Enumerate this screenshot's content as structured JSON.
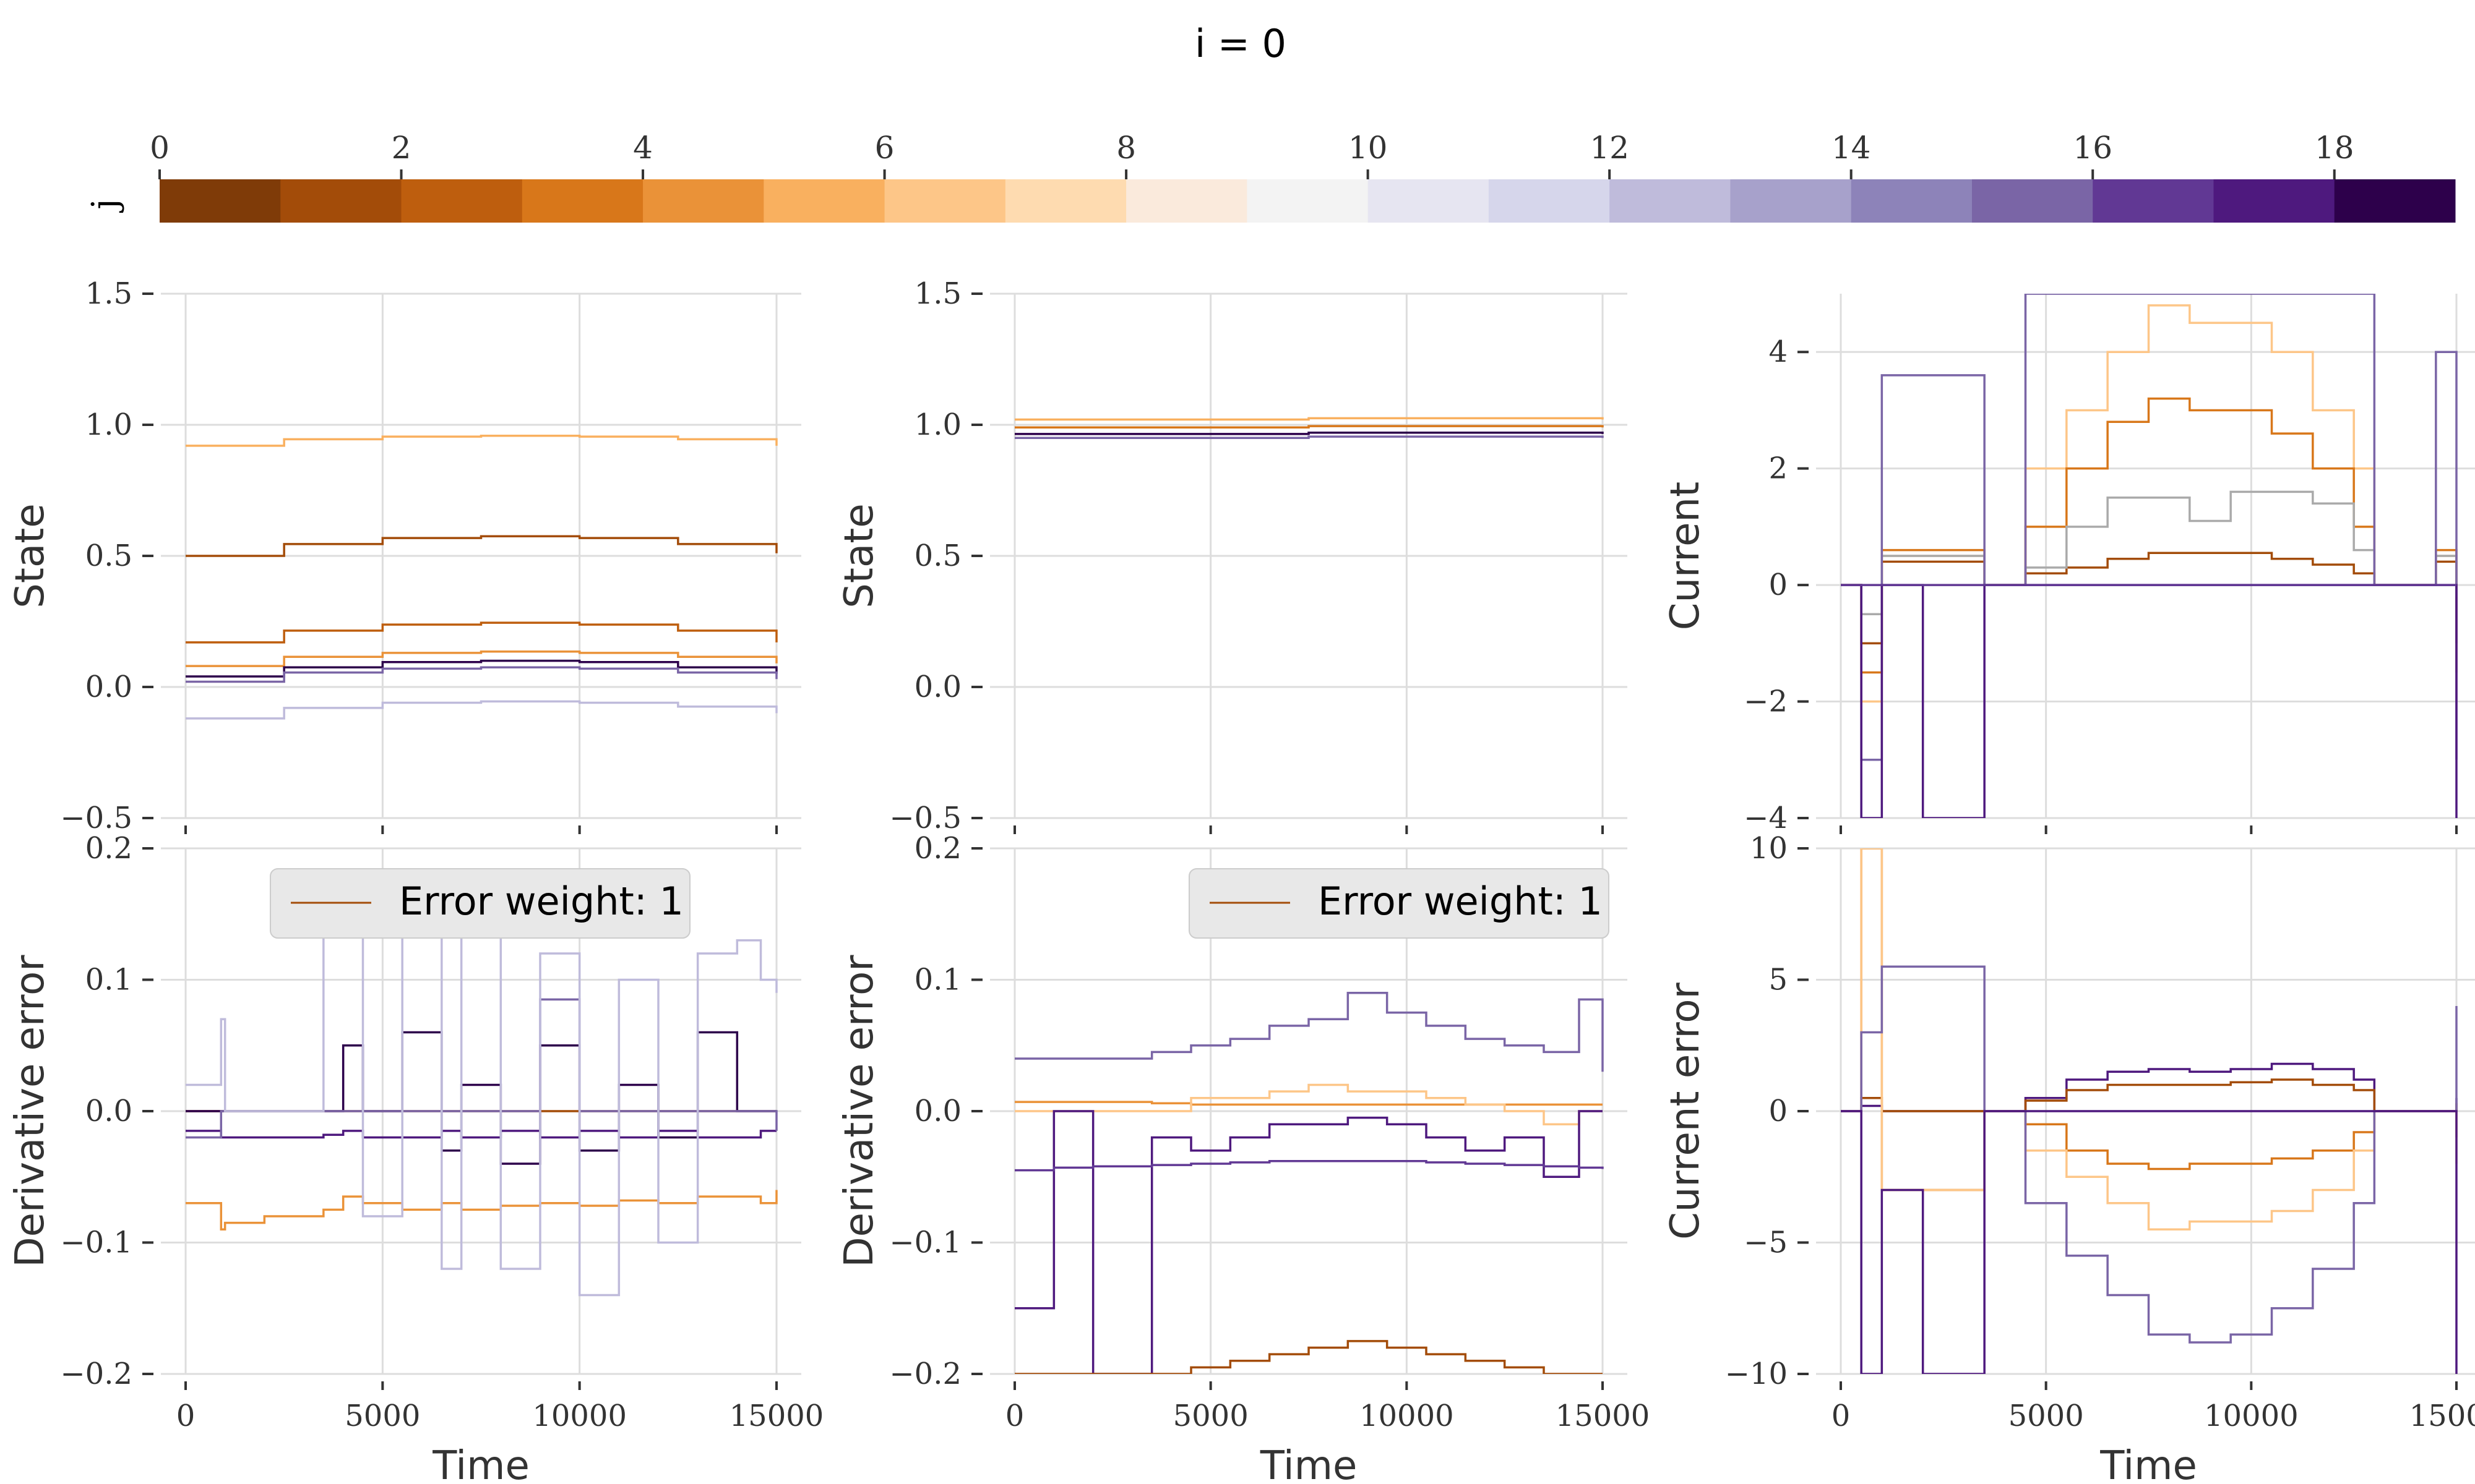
{
  "figure": {
    "title": "i = 0",
    "colorbar": {
      "label": "j",
      "ticks": [
        "0",
        "2",
        "4",
        "6",
        "8",
        "10",
        "12",
        "14",
        "16",
        "18"
      ],
      "colors": [
        "#7f3b08",
        "#a34c09",
        "#be5e0e",
        "#d8771a",
        "#ea9238",
        "#f9b05f",
        "#fdc688",
        "#fedbb0",
        "#faeadc",
        "#f3f3f3",
        "#e6e5f1",
        "#d6d6eb",
        "#bfbbdb",
        "#a7a1cb",
        "#8d83b9",
        "#7a65a6",
        "#613894",
        "#4e197e",
        "#2d004b"
      ]
    }
  },
  "chart_data": [
    {
      "type": "line",
      "panel": "top-left",
      "xlabel": "",
      "ylabel": "State",
      "xlim": [
        0,
        15000
      ],
      "ylim": [
        -0.5,
        1.5
      ],
      "xticks": [
        0,
        5000,
        10000,
        15000
      ],
      "xtick_labels": [],
      "yticks": [
        -0.5,
        0.0,
        0.5,
        1.0,
        1.5
      ],
      "ytick_labels": [
        "−0.5",
        "0.0",
        "0.5",
        "1.0",
        "1.5"
      ],
      "grid": true,
      "x": [
        0,
        2500,
        5000,
        7500,
        10000,
        12500,
        15000
      ],
      "series": [
        {
          "color": "#f9b05f",
          "values": [
            0.92,
            0.945,
            0.955,
            0.958,
            0.955,
            0.945,
            0.92
          ]
        },
        {
          "color": "#a34c09",
          "values": [
            0.5,
            0.545,
            0.568,
            0.575,
            0.568,
            0.545,
            0.51
          ]
        },
        {
          "color": "#be5e0e",
          "values": [
            0.17,
            0.215,
            0.238,
            0.245,
            0.238,
            0.215,
            0.17
          ]
        },
        {
          "color": "#ea9238",
          "values": [
            0.08,
            0.115,
            0.13,
            0.135,
            0.13,
            0.115,
            0.09
          ]
        },
        {
          "color": "#2d004b",
          "values": [
            0.04,
            0.075,
            0.095,
            0.1,
            0.095,
            0.075,
            0.05
          ]
        },
        {
          "color": "#7a65a6",
          "values": [
            0.02,
            0.055,
            0.07,
            0.075,
            0.07,
            0.055,
            0.03
          ]
        },
        {
          "color": "#bfbbdb",
          "values": [
            -0.12,
            -0.08,
            -0.06,
            -0.055,
            -0.06,
            -0.075,
            -0.1
          ]
        }
      ]
    },
    {
      "type": "line",
      "panel": "top-middle",
      "xlabel": "",
      "ylabel": "State",
      "xlim": [
        0,
        15000
      ],
      "ylim": [
        -0.5,
        1.5
      ],
      "xticks": [
        0,
        5000,
        10000,
        15000
      ],
      "xtick_labels": [],
      "yticks": [
        -0.5,
        0.0,
        0.5,
        1.0,
        1.5
      ],
      "ytick_labels": [
        "−0.5",
        "0.0",
        "0.5",
        "1.0",
        "1.5"
      ],
      "grid": true,
      "x": [
        0,
        7500,
        15000
      ],
      "series": [
        {
          "color": "#f9b05f",
          "values": [
            1.02,
            1.025,
            1.02
          ]
        },
        {
          "color": "#d8771a",
          "values": [
            0.99,
            0.995,
            0.99
          ]
        },
        {
          "color": "#2d004b",
          "values": [
            0.965,
            0.97,
            0.965
          ]
        },
        {
          "color": "#7a65a6",
          "values": [
            0.95,
            0.955,
            0.95
          ]
        }
      ]
    },
    {
      "type": "line",
      "panel": "top-right",
      "xlabel": "",
      "ylabel": "Current",
      "xlim": [
        0,
        15000
      ],
      "ylim": [
        -4,
        5
      ],
      "xticks": [
        0,
        5000,
        10000,
        15000
      ],
      "xtick_labels": [],
      "yticks": [
        -4,
        -2,
        0,
        2,
        4
      ],
      "ytick_labels": [
        "−4",
        "−2",
        "0",
        "2",
        "4"
      ],
      "grid": true,
      "x": [
        0,
        500,
        1000,
        2000,
        3500,
        4500,
        5500,
        6500,
        7500,
        8500,
        9500,
        10500,
        11500,
        12500,
        13000,
        14500,
        15000
      ],
      "series": [
        {
          "color": "#fdc688",
          "values": [
            0,
            -2,
            0.5,
            0.5,
            0,
            2.0,
            3.0,
            4.0,
            4.8,
            4.5,
            4.5,
            4.0,
            3.0,
            2.0,
            0,
            0.5,
            -2
          ]
        },
        {
          "color": "#d8771a",
          "values": [
            0,
            -1.5,
            0.6,
            0.6,
            0,
            1.0,
            2.0,
            2.8,
            3.2,
            3.0,
            3.0,
            2.6,
            2.0,
            1.0,
            0,
            0.6,
            -1.5
          ]
        },
        {
          "color": "#a34c09",
          "values": [
            0,
            -1.0,
            0.4,
            0.4,
            0,
            0.2,
            0.3,
            0.45,
            0.55,
            0.55,
            0.55,
            0.45,
            0.35,
            0.2,
            0,
            0.4,
            -1.0
          ]
        },
        {
          "color": "#aaaaaa",
          "values": [
            0,
            -0.5,
            0.5,
            0.5,
            0,
            0.3,
            1.0,
            1.5,
            1.5,
            1.1,
            1.6,
            1.6,
            1.4,
            0.6,
            0,
            0.5,
            -0.2
          ]
        },
        {
          "color": "#7a65a6",
          "values": [
            0,
            -3.0,
            3.6,
            3.6,
            0,
            5.0,
            5.0,
            5.0,
            5.0,
            5.0,
            5.0,
            5.0,
            5.0,
            5.0,
            0,
            4.0,
            -3.0
          ]
        },
        {
          "color": "#4e197e",
          "values": [
            0,
            -4.0,
            0,
            -4.0,
            0,
            0,
            0,
            0,
            0,
            0,
            0,
            0,
            0,
            0,
            0,
            0,
            -4.0
          ]
        },
        {
          "color": "#613894",
          "values": [
            0,
            0,
            0,
            0,
            0,
            0,
            0,
            0,
            0,
            0,
            0,
            0,
            0,
            0,
            0,
            0,
            0
          ]
        }
      ]
    },
    {
      "type": "line",
      "panel": "bottom-left",
      "xlabel": "Time",
      "ylabel": "Derivative error",
      "legend": "Error weight: 1",
      "legend_loc": "top",
      "xlim": [
        0,
        15000
      ],
      "ylim": [
        -0.2,
        0.2
      ],
      "xticks": [
        0,
        5000,
        10000,
        15000
      ],
      "xtick_labels": [
        "0",
        "5000",
        "10000",
        "15000"
      ],
      "yticks": [
        -0.2,
        -0.1,
        0.0,
        0.1,
        0.2
      ],
      "ytick_labels": [
        "−0.2",
        "−0.1",
        "0.0",
        "0.1",
        "0.2"
      ],
      "grid": true,
      "x": [
        0,
        900,
        1000,
        2000,
        3500,
        4000,
        4500,
        5500,
        6500,
        7000,
        8000,
        9000,
        10000,
        11000,
        12000,
        13000,
        14000,
        14600,
        15000
      ],
      "series": [
        {
          "color": "#a34c09",
          "values": [
            0.0,
            0.0,
            0.0,
            0.0,
            0.0,
            0.0,
            0.0,
            0.0,
            0.0,
            0.0,
            0.0,
            0.0,
            0.0,
            0.0,
            0.0,
            0.0,
            0.0,
            0.0,
            0.0
          ]
        },
        {
          "color": "#ea9238",
          "values": [
            -0.07,
            -0.09,
            -0.085,
            -0.08,
            -0.075,
            -0.065,
            -0.07,
            -0.075,
            -0.07,
            -0.075,
            -0.072,
            -0.07,
            -0.072,
            -0.068,
            -0.07,
            -0.065,
            -0.065,
            -0.07,
            -0.06
          ]
        },
        {
          "color": "#4e197e",
          "values": [
            -0.015,
            -0.02,
            -0.02,
            -0.02,
            -0.018,
            -0.015,
            -0.02,
            -0.02,
            -0.015,
            -0.02,
            -0.015,
            -0.02,
            -0.015,
            -0.02,
            -0.015,
            -0.02,
            -0.02,
            -0.015,
            -0.015
          ]
        },
        {
          "color": "#2d004b",
          "values": [
            0.0,
            0.0,
            0.0,
            0.0,
            0.0,
            0.05,
            0.0,
            0.06,
            -0.03,
            0.02,
            -0.04,
            0.05,
            -0.03,
            0.02,
            -0.02,
            0.06,
            0.0,
            0.0,
            0.0
          ]
        },
        {
          "color": "#7a65a6",
          "values": [
            -0.02,
            0.0,
            0.0,
            0.0,
            0.0,
            0.0,
            0.0,
            0.0,
            0.0,
            0.0,
            0.0,
            0.085,
            0.0,
            0.0,
            0.0,
            0.0,
            0.0,
            0.0,
            -0.015
          ]
        },
        {
          "color": "#bfbbdb",
          "values": [
            0.02,
            0.07,
            0.0,
            0.0,
            0.15,
            0.18,
            -0.08,
            0.16,
            -0.12,
            0.14,
            -0.12,
            0.12,
            -0.14,
            0.1,
            -0.1,
            0.12,
            0.13,
            0.1,
            0.09
          ]
        }
      ]
    },
    {
      "type": "line",
      "panel": "bottom-middle",
      "xlabel": "Time",
      "ylabel": "Derivative error",
      "legend": "Error weight: 1",
      "legend_loc": "top-right",
      "xlim": [
        0,
        15000
      ],
      "ylim": [
        -0.2,
        0.2
      ],
      "xticks": [
        0,
        5000,
        10000,
        15000
      ],
      "xtick_labels": [
        "0",
        "5000",
        "10000",
        "15000"
      ],
      "yticks": [
        -0.2,
        -0.1,
        0.0,
        0.1,
        0.2
      ],
      "ytick_labels": [
        "−0.2",
        "−0.1",
        "0.0",
        "0.1",
        "0.2"
      ],
      "grid": true,
      "x": [
        0,
        1000,
        2000,
        3500,
        4500,
        5500,
        6500,
        7500,
        8500,
        9500,
        10500,
        11500,
        12500,
        13500,
        14400,
        15000
      ],
      "series": [
        {
          "color": "#7a65a6",
          "values": [
            0.04,
            0.04,
            0.04,
            0.045,
            0.05,
            0.055,
            0.065,
            0.07,
            0.09,
            0.075,
            0.065,
            0.055,
            0.05,
            0.045,
            0.085,
            0.03
          ]
        },
        {
          "color": "#ea9238",
          "values": [
            0.007,
            0.007,
            0.007,
            0.006,
            0.005,
            0.005,
            0.005,
            0.005,
            0.005,
            0.005,
            0.005,
            0.005,
            0.005,
            0.005,
            0.005,
            0.005
          ]
        },
        {
          "color": "#fdc688",
          "values": [
            0.0,
            0.0,
            0.0,
            0.0,
            0.01,
            0.01,
            0.015,
            0.02,
            0.015,
            0.015,
            0.01,
            0.005,
            0.0,
            -0.01,
            0.0,
            0.0
          ]
        },
        {
          "color": "#4e197e",
          "values": [
            -0.15,
            0.0,
            -0.2,
            -0.02,
            -0.03,
            -0.02,
            -0.01,
            -0.01,
            -0.005,
            -0.01,
            -0.02,
            -0.03,
            -0.02,
            -0.05,
            0.0,
            0.0
          ]
        },
        {
          "color": "#613894",
          "values": [
            -0.045,
            -0.043,
            -0.042,
            -0.041,
            -0.04,
            -0.039,
            -0.038,
            -0.038,
            -0.038,
            -0.038,
            -0.039,
            -0.04,
            -0.041,
            -0.042,
            -0.043,
            -0.044
          ]
        },
        {
          "color": "#a34c09",
          "values": [
            -0.2,
            -0.2,
            -0.2,
            -0.2,
            -0.195,
            -0.19,
            -0.185,
            -0.18,
            -0.175,
            -0.18,
            -0.185,
            -0.19,
            -0.195,
            -0.2,
            -0.2,
            -0.2
          ]
        }
      ]
    },
    {
      "type": "line",
      "panel": "bottom-right",
      "xlabel": "Time",
      "ylabel": "Current error",
      "xlim": [
        0,
        15000
      ],
      "ylim": [
        -10,
        10
      ],
      "xticks": [
        0,
        5000,
        10000,
        15000
      ],
      "xtick_labels": [
        "0",
        "5000",
        "10000",
        "15000"
      ],
      "yticks": [
        -10,
        -5,
        0,
        5,
        10
      ],
      "ytick_labels": [
        "−10",
        "−5",
        "0",
        "5",
        "10"
      ],
      "grid": true,
      "x": [
        0,
        500,
        1000,
        2000,
        3500,
        4500,
        5500,
        6500,
        7500,
        8500,
        9500,
        10500,
        11500,
        12500,
        13000,
        14500,
        15000
      ],
      "series": [
        {
          "color": "#4e197e",
          "values": [
            0,
            0.2,
            0,
            0,
            0,
            0.5,
            1.2,
            1.5,
            1.6,
            1.5,
            1.6,
            1.8,
            1.6,
            1.2,
            0,
            0,
            0.5
          ]
        },
        {
          "color": "#a34c09",
          "values": [
            0,
            0.5,
            0,
            0,
            0,
            0.4,
            0.8,
            1.0,
            1.0,
            1.0,
            1.1,
            1.2,
            1.0,
            0.8,
            0,
            0,
            0.3
          ]
        },
        {
          "color": "#d8771a",
          "values": [
            0,
            10,
            -3,
            -3,
            0,
            -0.5,
            -1.5,
            -2.0,
            -2.2,
            -2.0,
            -2.0,
            -1.8,
            -1.5,
            -0.8,
            0,
            0,
            -1.0
          ]
        },
        {
          "color": "#fdc688",
          "values": [
            0,
            10,
            -3,
            -3,
            0,
            -1.5,
            -2.5,
            -3.5,
            -4.5,
            -4.2,
            -4.2,
            -3.8,
            -3.0,
            -1.5,
            0,
            0,
            -2.0
          ]
        },
        {
          "color": "#7a65a6",
          "values": [
            0,
            3,
            5.5,
            5.5,
            0,
            -3.5,
            -5.5,
            -7.0,
            -8.5,
            -8.8,
            -8.5,
            -7.5,
            -6.0,
            -3.5,
            0,
            0,
            4.0
          ]
        },
        {
          "color": "#4e197e",
          "values": [
            0,
            -10,
            -3,
            -10,
            0,
            0,
            0,
            0,
            0,
            0,
            0,
            0,
            0,
            0,
            0,
            0,
            -10
          ]
        }
      ]
    }
  ]
}
